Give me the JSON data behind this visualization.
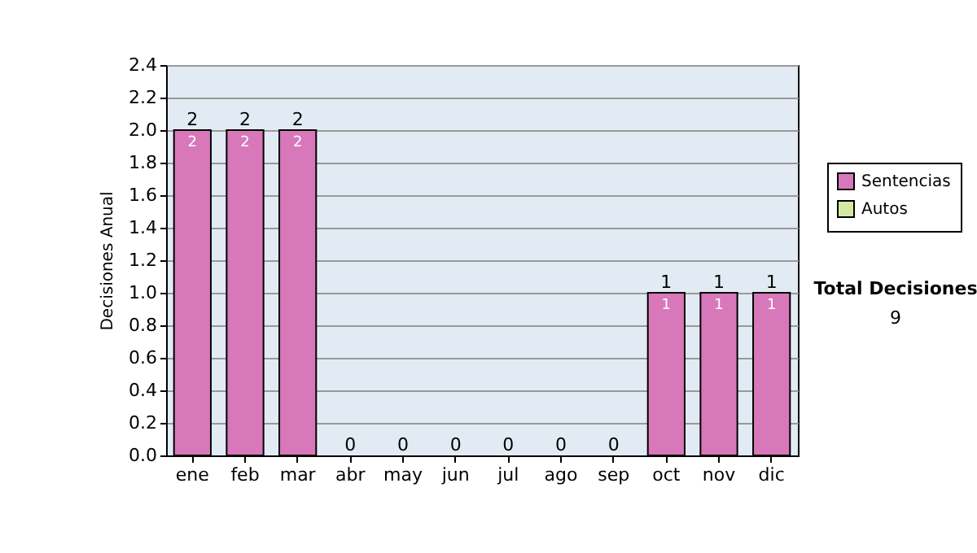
{
  "chart_data": {
    "type": "bar",
    "stacked": true,
    "ylabel": "Decisiones Anual",
    "categories": [
      "ene",
      "feb",
      "mar",
      "abr",
      "may",
      "jun",
      "jul",
      "ago",
      "sep",
      "oct",
      "nov",
      "dic"
    ],
    "series": [
      {
        "name": "Sentencias",
        "color": "#d977bb",
        "values": [
          2,
          2,
          2,
          0,
          0,
          0,
          0,
          0,
          0,
          1,
          1,
          1
        ],
        "value_labels": [
          "2",
          "2",
          "2",
          null,
          null,
          null,
          null,
          null,
          null,
          "1",
          "1",
          "1"
        ]
      },
      {
        "name": "Autos",
        "color": "#d4e8a4",
        "values": [
          0,
          0,
          0,
          0,
          0,
          0,
          0,
          0,
          0,
          0,
          0,
          0
        ]
      }
    ],
    "totals": [
      "2",
      "2",
      "2",
      "0",
      "0",
      "0",
      "0",
      "0",
      "0",
      "1",
      "1",
      "1"
    ],
    "ylim": [
      0,
      2.4
    ],
    "yticks": [
      {
        "value": 0,
        "label": "0.0"
      },
      0.2,
      0.4,
      0.6,
      0.8,
      {
        "value": 1,
        "label": "1.0"
      },
      1.2,
      1.4,
      1.6,
      1.8,
      {
        "value": 2,
        "label": "2.0"
      },
      2.2,
      2.4
    ],
    "grid": "y",
    "legend": "right",
    "annotations": [
      "Total Decisiones",
      "9"
    ]
  }
}
